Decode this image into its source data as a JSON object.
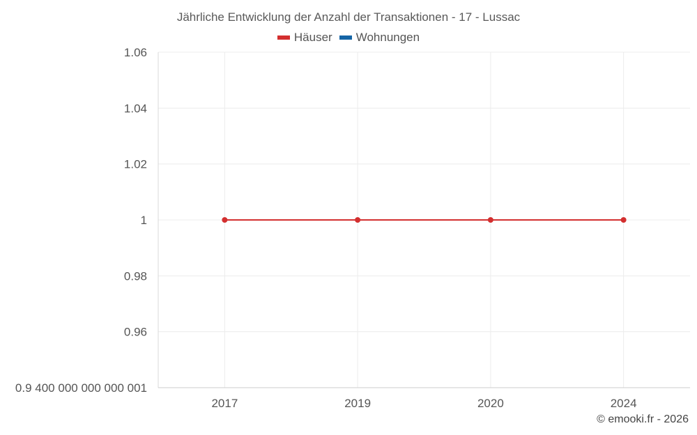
{
  "chart_data": {
    "type": "line",
    "title": "Jährliche Entwicklung der Anzahl der Transaktionen - 17 - Lussac",
    "categories": [
      "2017",
      "2019",
      "2020",
      "2024"
    ],
    "series": [
      {
        "name": "Häuser",
        "color": "#d32f2f",
        "values": [
          1,
          1,
          1,
          1
        ]
      },
      {
        "name": "Wohnungen",
        "color": "#1565a6",
        "values": [
          null,
          null,
          null,
          null
        ]
      }
    ],
    "y_ticks": [
      1.06,
      1.04,
      1.02,
      1,
      0.98,
      0.96,
      0.94
    ],
    "y_tick_labels": [
      "1.06",
      "1.04",
      "1.02",
      "1",
      "0.98",
      "0.96",
      "0.9 400 000 000 000 001"
    ],
    "ylim": [
      0.94,
      1.06
    ],
    "grid": true,
    "legend_position": "top-center"
  },
  "credit": "© emooki.fr - 2026"
}
